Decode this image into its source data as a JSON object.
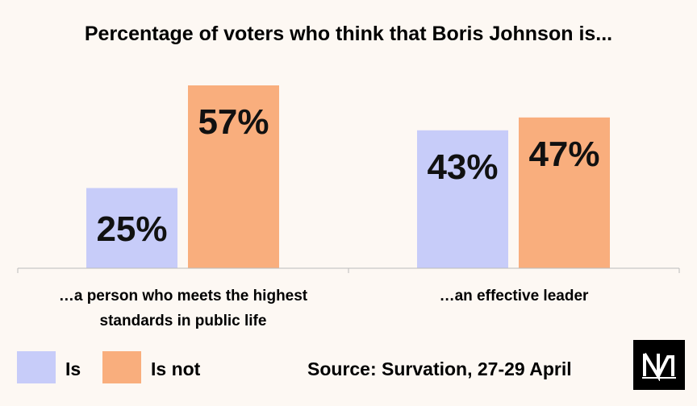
{
  "chart_data": {
    "type": "bar",
    "title": "Percentage of voters who think that Boris Johnson is...",
    "categories": [
      [
        "…a person who meets the highest",
        "standards in public life"
      ],
      [
        "…an effective leader"
      ]
    ],
    "series": [
      {
        "name": "Is",
        "color": "#c7ccf9",
        "values": [
          25,
          43
        ],
        "labels": [
          "25%",
          "43%"
        ]
      },
      {
        "name": "Is not",
        "color": "#f9ae7d",
        "values": [
          57,
          47
        ],
        "labels": [
          "57%",
          "47%"
        ]
      }
    ],
    "ylim": [
      0,
      60
    ],
    "grid": false,
    "legend_position": "bottom-left"
  },
  "legend": {
    "is_label": "Is",
    "is_not_label": "Is not"
  },
  "source": "Source: Survation, 27-29 April",
  "logo": {
    "icon": "nm-logo-icon"
  }
}
